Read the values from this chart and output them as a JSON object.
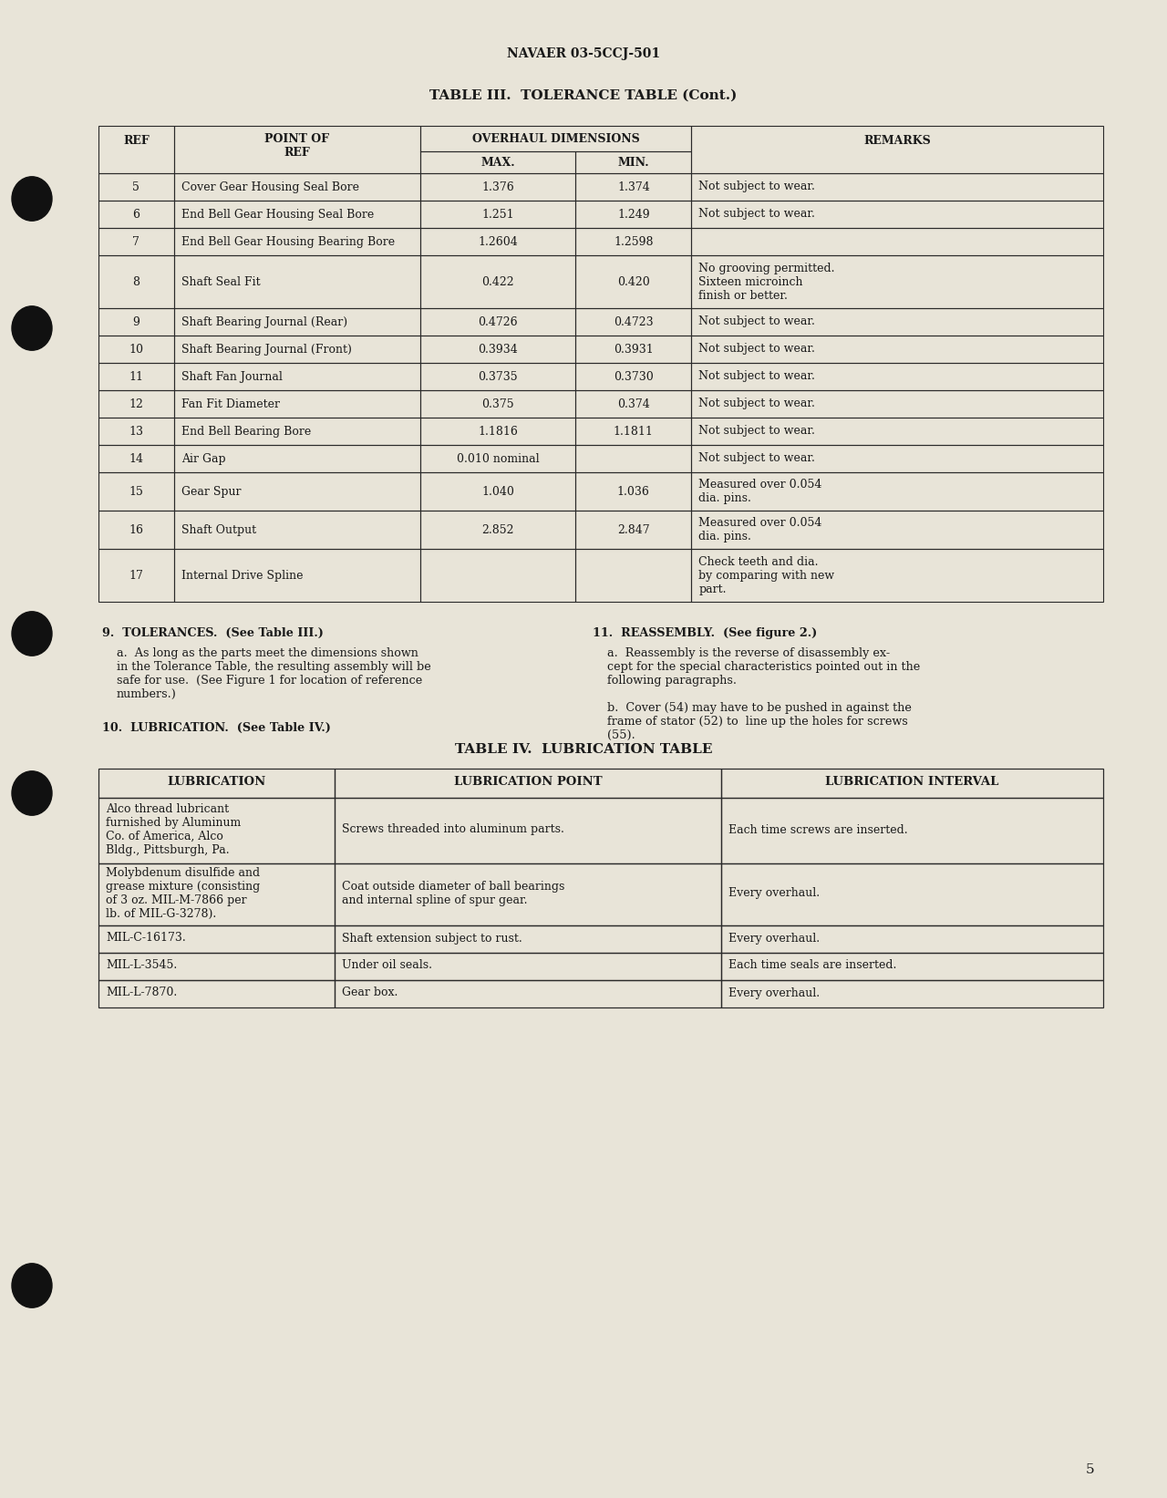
{
  "bg_color": "#e8e4d8",
  "text_color": "#1a1a1a",
  "page_number": "5",
  "header_text": "NAVAER 03-5CCJ-501",
  "table3_title": "TABLE III.  TOLERANCE TABLE (Cont.)",
  "table3_rows": [
    [
      "5",
      "Cover Gear Housing Seal Bore",
      "1.376",
      "1.374",
      "Not subject to wear."
    ],
    [
      "6",
      "End Bell Gear Housing Seal Bore",
      "1.251",
      "1.249",
      "Not subject to wear."
    ],
    [
      "7",
      "End Bell Gear Housing Bearing Bore",
      "1.2604",
      "1.2598",
      ""
    ],
    [
      "8",
      "Shaft Seal Fit",
      "0.422",
      "0.420",
      "No grooving permitted.\nSixteen microinch\nfinish or better."
    ],
    [
      "9",
      "Shaft Bearing Journal (Rear)",
      "0.4726",
      "0.4723",
      "Not subject to wear."
    ],
    [
      "10",
      "Shaft Bearing Journal (Front)",
      "0.3934",
      "0.3931",
      "Not subject to wear."
    ],
    [
      "11",
      "Shaft Fan Journal",
      "0.3735",
      "0.3730",
      "Not subject to wear."
    ],
    [
      "12",
      "Fan Fit Diameter",
      "0.375",
      "0.374",
      "Not subject to wear."
    ],
    [
      "13",
      "End Bell Bearing Bore",
      "1.1816",
      "1.1811",
      "Not subject to wear."
    ],
    [
      "14",
      "Air Gap",
      "0.010 nominal",
      "",
      "Not subject to wear."
    ],
    [
      "15",
      "Gear Spur",
      "1.040",
      "1.036",
      "Measured over 0.054\ndia. pins."
    ],
    [
      "16",
      "Shaft Output",
      "2.852",
      "2.847",
      "Measured over 0.054\ndia. pins."
    ],
    [
      "17",
      "Internal Drive Spline",
      "",
      "",
      "Check teeth and dia.\nby comparing with new\npart."
    ]
  ],
  "table4_title": "TABLE IV.  LUBRICATION TABLE",
  "table4_headers": [
    "LUBRICATION",
    "LUBRICATION POINT",
    "LUBRICATION INTERVAL"
  ],
  "table4_rows": [
    [
      "Alco thread lubricant\nfurnished by Aluminum\nCo. of America, Alco\nBldg., Pittsburgh, Pa.",
      "Screws threaded into aluminum parts.",
      "Each time screws are inserted."
    ],
    [
      "Molybdenum disulfide and\ngrease mixture (consisting\nof 3 oz. MIL-M-7866 per\nlb. of MIL-G-3278).",
      "Coat outside diameter of ball bearings\nand internal spline of spur gear.",
      "Every overhaul."
    ],
    [
      "MIL-C-16173.",
      "Shaft extension subject to rust.",
      "Every overhaul."
    ],
    [
      "MIL-L-3545.",
      "Under oil seals.",
      "Each time seals are inserted."
    ],
    [
      "MIL-L-7870.",
      "Gear box.",
      "Every overhaul."
    ]
  ]
}
